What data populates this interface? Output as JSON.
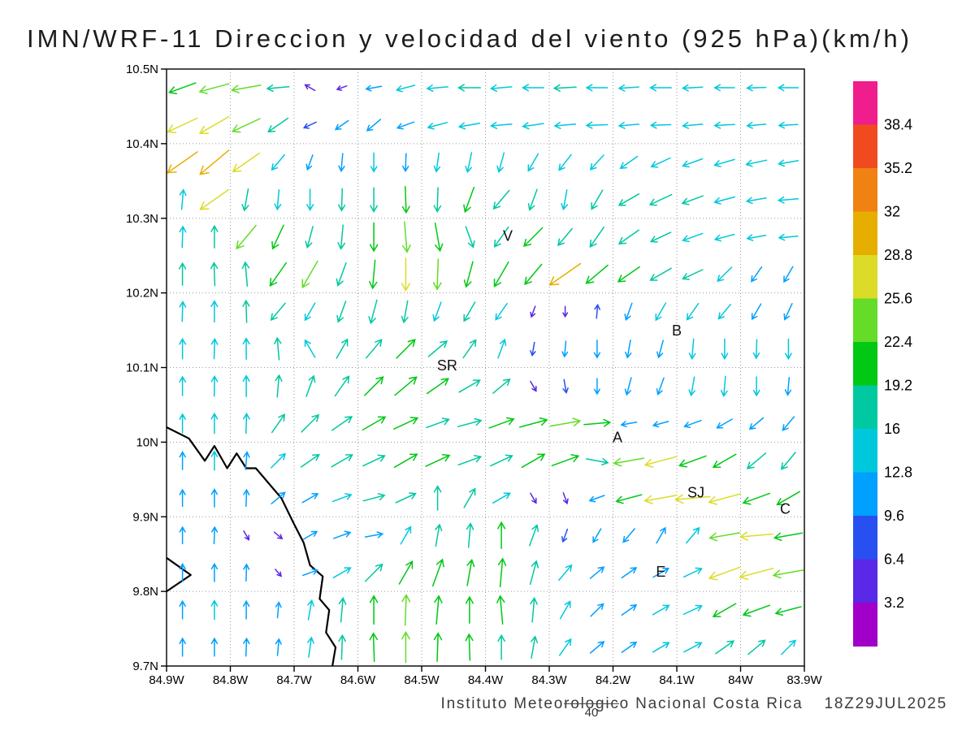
{
  "title": "IMN/WRF-11 Direccion y velocidad del viento (925 hPa)(km/h)",
  "footer": {
    "institution": "Instituto Meteorologico Nacional Costa Rica",
    "timestamp": "18Z29JUL2025",
    "page_number": "40"
  },
  "axes": {
    "lat_ticks": [
      "10.5N",
      "10.4N",
      "10.3N",
      "10.2N",
      "10.1N",
      "10N",
      "9.9N",
      "9.8N",
      "9.7N"
    ],
    "lon_ticks": [
      "84.9W",
      "84.8W",
      "84.7W",
      "84.6W",
      "84.5W",
      "84.4W",
      "84.3W",
      "84.2W",
      "84.1W",
      "84W",
      "83.9W"
    ],
    "lat_range": [
      9.7,
      10.5
    ],
    "lon_range": [
      -84.9,
      -83.9
    ]
  },
  "colorbar": {
    "labels": [
      "38.4",
      "35.2",
      "32",
      "28.8",
      "25.6",
      "22.4",
      "19.2",
      "16",
      "12.8",
      "9.6",
      "6.4",
      "3.2"
    ],
    "levels": [
      3.2,
      6.4,
      9.6,
      12.8,
      16,
      19.2,
      22.4,
      25.6,
      28.8,
      32,
      35.2,
      38.4
    ],
    "colors_bottom_to_top": [
      "#A000C8",
      "#5A28E6",
      "#2850F0",
      "#00A0FF",
      "#00C8DC",
      "#00C8A0",
      "#00C814",
      "#64DC28",
      "#DCDC28",
      "#E6AF00",
      "#F08214",
      "#F04B1E",
      "#F01E8C"
    ]
  },
  "map": {
    "city_labels": [
      {
        "text": "V",
        "lon": -84.365,
        "lat": 10.27
      },
      {
        "text": "SR",
        "lon": -84.46,
        "lat": 10.096
      },
      {
        "text": "B",
        "lon": -84.1,
        "lat": 10.143
      },
      {
        "text": "A",
        "lon": -84.193,
        "lat": 10.0
      },
      {
        "text": "SJ",
        "lon": -84.07,
        "lat": 9.926
      },
      {
        "text": "C",
        "lon": -83.93,
        "lat": 9.904
      },
      {
        "text": "E",
        "lon": -84.125,
        "lat": 9.82
      }
    ],
    "coastline_segments": [
      [
        [
          -84.9,
          10.02
        ],
        [
          -84.865,
          10.005
        ],
        [
          -84.84,
          9.975
        ],
        [
          -84.825,
          9.995
        ],
        [
          -84.805,
          9.965
        ],
        [
          -84.79,
          9.985
        ],
        [
          -84.775,
          9.965
        ],
        [
          -84.76,
          9.965
        ],
        [
          -84.72,
          9.925
        ],
        [
          -84.7,
          9.89
        ],
        [
          -84.685,
          9.865
        ],
        [
          -84.675,
          9.835
        ],
        [
          -84.655,
          9.82
        ],
        [
          -84.66,
          9.79
        ],
        [
          -84.645,
          9.775
        ],
        [
          -84.65,
          9.745
        ],
        [
          -84.635,
          9.725
        ],
        [
          -84.64,
          9.7
        ]
      ],
      [
        [
          -84.9,
          9.845
        ],
        [
          -84.862,
          9.822
        ],
        [
          -84.9,
          9.8
        ]
      ]
    ]
  },
  "chart_data": {
    "type": "quiver",
    "title": "IMN/WRF-11 Direccion y velocidad del viento",
    "level": "925 hPa",
    "units": "km/h",
    "dir_convention": "degrees counterclockwise from east; arrow points toward dir",
    "speed_scale_levels": [
      3.2,
      6.4,
      9.6,
      12.8,
      16,
      19.2,
      22.4,
      25.6,
      28.8,
      32,
      35.2,
      38.4
    ],
    "grid": {
      "ncols": 20,
      "nrows": 16,
      "lon_start": -84.88,
      "lon_end": -83.92,
      "lat_start": 10.48,
      "lat_end": 9.72
    },
    "vectors": [
      [
        [
          200,
          22
        ],
        [
          195,
          24
        ],
        [
          190,
          23
        ],
        [
          185,
          16
        ],
        [
          150,
          6
        ],
        [
          200,
          5
        ],
        [
          190,
          10
        ],
        [
          195,
          13
        ],
        [
          185,
          15
        ],
        [
          180,
          16
        ],
        [
          185,
          15
        ],
        [
          180,
          15
        ],
        [
          183,
          16
        ],
        [
          180,
          15
        ],
        [
          184,
          14
        ],
        [
          180,
          15
        ],
        [
          183,
          14
        ],
        [
          180,
          14
        ],
        [
          182,
          13
        ],
        [
          180,
          14
        ]
      ],
      [
        [
          205,
          26
        ],
        [
          210,
          27
        ],
        [
          205,
          24
        ],
        [
          215,
          18
        ],
        [
          205,
          8
        ],
        [
          215,
          10
        ],
        [
          220,
          12
        ],
        [
          200,
          12
        ],
        [
          195,
          14
        ],
        [
          190,
          15
        ],
        [
          185,
          15
        ],
        [
          188,
          15
        ],
        [
          185,
          15
        ],
        [
          182,
          15
        ],
        [
          185,
          14
        ],
        [
          182,
          14
        ],
        [
          185,
          14
        ],
        [
          183,
          14
        ],
        [
          185,
          13
        ],
        [
          183,
          13
        ]
      ],
      [
        [
          215,
          30
        ],
        [
          220,
          31
        ],
        [
          215,
          26
        ],
        [
          230,
          14
        ],
        [
          250,
          10
        ],
        [
          265,
          12
        ],
        [
          270,
          13
        ],
        [
          268,
          12
        ],
        [
          262,
          13
        ],
        [
          258,
          14
        ],
        [
          255,
          14
        ],
        [
          240,
          14
        ],
        [
          232,
          14
        ],
        [
          228,
          14
        ],
        [
          215,
          15
        ],
        [
          205,
          15
        ],
        [
          200,
          15
        ],
        [
          196,
          15
        ],
        [
          192,
          15
        ],
        [
          190,
          14
        ]
      ],
      [
        [
          85,
          14
        ],
        [
          215,
          28
        ],
        [
          260,
          16
        ],
        [
          265,
          14
        ],
        [
          270,
          15
        ],
        [
          268,
          16
        ],
        [
          270,
          18
        ],
        [
          272,
          20
        ],
        [
          268,
          18
        ],
        [
          250,
          20
        ],
        [
          230,
          18
        ],
        [
          250,
          16
        ],
        [
          260,
          14
        ],
        [
          240,
          16
        ],
        [
          210,
          17
        ],
        [
          205,
          18
        ],
        [
          200,
          16
        ],
        [
          195,
          15
        ],
        [
          190,
          14
        ],
        [
          185,
          14
        ]
      ],
      [
        [
          88,
          15
        ],
        [
          90,
          16
        ],
        [
          230,
          24
        ],
        [
          245,
          20
        ],
        [
          255,
          16
        ],
        [
          265,
          18
        ],
        [
          270,
          22
        ],
        [
          275,
          24
        ],
        [
          280,
          22
        ],
        [
          290,
          16
        ],
        [
          235,
          18
        ],
        [
          225,
          20
        ],
        [
          230,
          16
        ],
        [
          235,
          18
        ],
        [
          215,
          18
        ],
        [
          205,
          16
        ],
        [
          200,
          15
        ],
        [
          195,
          14
        ],
        [
          190,
          13
        ],
        [
          185,
          13
        ]
      ],
      [
        [
          90,
          16
        ],
        [
          92,
          17
        ],
        [
          95,
          18
        ],
        [
          235,
          22
        ],
        [
          240,
          24
        ],
        [
          250,
          18
        ],
        [
          265,
          22
        ],
        [
          270,
          26
        ],
        [
          268,
          24
        ],
        [
          255,
          20
        ],
        [
          240,
          22
        ],
        [
          230,
          20
        ],
        [
          215,
          31
        ],
        [
          220,
          22
        ],
        [
          215,
          20
        ],
        [
          210,
          18
        ],
        [
          205,
          16
        ],
        [
          225,
          14
        ],
        [
          235,
          12
        ],
        [
          240,
          12
        ]
      ],
      [
        [
          88,
          14
        ],
        [
          90,
          15
        ],
        [
          92,
          16
        ],
        [
          230,
          16
        ],
        [
          240,
          14
        ],
        [
          250,
          16
        ],
        [
          255,
          18
        ],
        [
          260,
          16
        ],
        [
          250,
          14
        ],
        [
          240,
          16
        ],
        [
          235,
          14
        ],
        [
          250,
          6
        ],
        [
          270,
          5
        ],
        [
          85,
          8
        ],
        [
          250,
          12
        ],
        [
          240,
          14
        ],
        [
          235,
          14
        ],
        [
          230,
          13
        ],
        [
          240,
          12
        ],
        [
          245,
          12
        ]
      ],
      [
        [
          90,
          14
        ],
        [
          88,
          14
        ],
        [
          90,
          15
        ],
        [
          95,
          16
        ],
        [
          120,
          14
        ],
        [
          60,
          16
        ],
        [
          50,
          18
        ],
        [
          45,
          20
        ],
        [
          40,
          18
        ],
        [
          55,
          16
        ],
        [
          70,
          14
        ],
        [
          260,
          8
        ],
        [
          265,
          10
        ],
        [
          270,
          12
        ],
        [
          260,
          12
        ],
        [
          255,
          12
        ],
        [
          265,
          14
        ],
        [
          270,
          14
        ],
        [
          268,
          13
        ],
        [
          270,
          14
        ]
      ],
      [
        [
          90,
          13
        ],
        [
          89,
          14
        ],
        [
          90,
          15
        ],
        [
          85,
          16
        ],
        [
          70,
          16
        ],
        [
          55,
          18
        ],
        [
          45,
          20
        ],
        [
          40,
          22
        ],
        [
          35,
          20
        ],
        [
          30,
          18
        ],
        [
          40,
          16
        ],
        [
          300,
          6
        ],
        [
          280,
          8
        ],
        [
          270,
          10
        ],
        [
          255,
          12
        ],
        [
          250,
          12
        ],
        [
          260,
          13
        ],
        [
          265,
          14
        ],
        [
          270,
          13
        ],
        [
          265,
          12
        ]
      ],
      [
        [
          90,
          13
        ],
        [
          90,
          14
        ],
        [
          88,
          14
        ],
        [
          55,
          16
        ],
        [
          45,
          18
        ],
        [
          35,
          18
        ],
        [
          30,
          20
        ],
        [
          25,
          20
        ],
        [
          20,
          18
        ],
        [
          15,
          18
        ],
        [
          20,
          20
        ],
        [
          15,
          22
        ],
        [
          10,
          24
        ],
        [
          5,
          20
        ],
        [
          190,
          10
        ],
        [
          195,
          10
        ],
        [
          200,
          12
        ],
        [
          210,
          12
        ],
        [
          220,
          12
        ],
        [
          230,
          12
        ]
      ],
      [
        [
          90,
          12
        ],
        [
          90,
          13
        ],
        [
          85,
          12
        ],
        [
          45,
          14
        ],
        [
          35,
          16
        ],
        [
          30,
          18
        ],
        [
          25,
          18
        ],
        [
          30,
          20
        ],
        [
          25,
          20
        ],
        [
          20,
          18
        ],
        [
          25,
          18
        ],
        [
          30,
          20
        ],
        [
          20,
          22
        ],
        [
          350,
          16
        ],
        [
          190,
          24
        ],
        [
          195,
          26
        ],
        [
          200,
          22
        ],
        [
          210,
          20
        ],
        [
          220,
          18
        ],
        [
          230,
          16
        ]
      ],
      [
        [
          90,
          11
        ],
        [
          90,
          12
        ],
        [
          88,
          11
        ],
        [
          40,
          12
        ],
        [
          30,
          12
        ],
        [
          20,
          14
        ],
        [
          15,
          16
        ],
        [
          25,
          16
        ],
        [
          90,
          18
        ],
        [
          60,
          16
        ],
        [
          30,
          14
        ],
        [
          300,
          6
        ],
        [
          290,
          6
        ],
        [
          200,
          10
        ],
        [
          195,
          20
        ],
        [
          190,
          26
        ],
        [
          185,
          28
        ],
        [
          195,
          26
        ],
        [
          200,
          22
        ],
        [
          210,
          20
        ]
      ],
      [
        [
          90,
          11
        ],
        [
          88,
          11
        ],
        [
          300,
          5
        ],
        [
          320,
          5
        ],
        [
          30,
          10
        ],
        [
          20,
          12
        ],
        [
          10,
          12
        ],
        [
          60,
          14
        ],
        [
          80,
          16
        ],
        [
          85,
          18
        ],
        [
          90,
          20
        ],
        [
          70,
          16
        ],
        [
          250,
          8
        ],
        [
          240,
          10
        ],
        [
          230,
          12
        ],
        [
          60,
          12
        ],
        [
          50,
          14
        ],
        [
          190,
          24
        ],
        [
          185,
          26
        ],
        [
          190,
          22
        ]
      ],
      [
        [
          90,
          12
        ],
        [
          90,
          12
        ],
        [
          88,
          11
        ],
        [
          310,
          4
        ],
        [
          20,
          10
        ],
        [
          30,
          14
        ],
        [
          45,
          18
        ],
        [
          60,
          20
        ],
        [
          70,
          22
        ],
        [
          80,
          20
        ],
        [
          85,
          22
        ],
        [
          75,
          18
        ],
        [
          50,
          14
        ],
        [
          40,
          12
        ],
        [
          35,
          12
        ],
        [
          30,
          12
        ],
        [
          25,
          14
        ],
        [
          200,
          26
        ],
        [
          195,
          28
        ],
        [
          190,
          24
        ]
      ],
      [
        [
          90,
          12
        ],
        [
          90,
          13
        ],
        [
          90,
          12
        ],
        [
          85,
          10
        ],
        [
          80,
          14
        ],
        [
          85,
          18
        ],
        [
          90,
          22
        ],
        [
          88,
          24
        ],
        [
          85,
          22
        ],
        [
          90,
          20
        ],
        [
          95,
          22
        ],
        [
          85,
          18
        ],
        [
          60,
          14
        ],
        [
          45,
          12
        ],
        [
          35,
          12
        ],
        [
          30,
          13
        ],
        [
          25,
          14
        ],
        [
          210,
          20
        ],
        [
          200,
          22
        ],
        [
          195,
          20
        ]
      ],
      [
        [
          90,
          12
        ],
        [
          90,
          12
        ],
        [
          88,
          12
        ],
        [
          85,
          11
        ],
        [
          82,
          14
        ],
        [
          88,
          18
        ],
        [
          92,
          22
        ],
        [
          90,
          24
        ],
        [
          88,
          22
        ],
        [
          92,
          20
        ],
        [
          90,
          18
        ],
        [
          80,
          16
        ],
        [
          55,
          14
        ],
        [
          40,
          12
        ],
        [
          35,
          12
        ],
        [
          30,
          13
        ],
        [
          28,
          14
        ],
        [
          35,
          16
        ],
        [
          40,
          16
        ],
        [
          45,
          14
        ]
      ]
    ]
  }
}
